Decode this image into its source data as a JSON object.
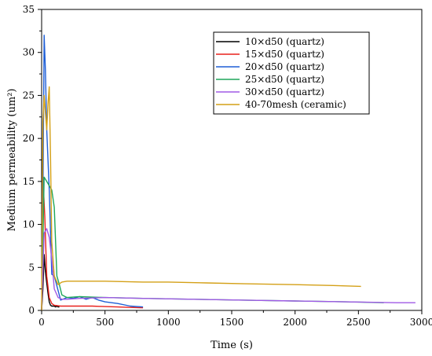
{
  "chart_data": {
    "type": "line",
    "xlabel": "Time (s)",
    "ylabel": "Medium permeability (um²)",
    "xlim": [
      0,
      3000
    ],
    "ylim": [
      0,
      35
    ],
    "xticks": [
      "0",
      "500",
      "1000",
      "1500",
      "2000",
      "2500",
      "3000"
    ],
    "yticks": [
      "0",
      "5",
      "10",
      "15",
      "20",
      "25",
      "30",
      "35"
    ],
    "grid": false,
    "legend_position": "top-right",
    "series": [
      {
        "name": "10×d50 (quartz)",
        "color": "#000000",
        "x": [
          0,
          10,
          20,
          30,
          40,
          50,
          60,
          70,
          80,
          90,
          100,
          110,
          120,
          130,
          140
        ],
        "y": [
          0,
          2.5,
          6.5,
          4.5,
          3.2,
          2.0,
          1.0,
          0.6,
          0.5,
          0.5,
          0.5,
          0.4,
          0.5,
          0.4,
          0.4
        ]
      },
      {
        "name": "15×d50 (quartz)",
        "color": "#e8201c",
        "x": [
          0,
          15,
          25,
          40,
          60,
          80,
          100,
          150,
          200,
          300,
          400,
          500,
          600,
          700,
          800
        ],
        "y": [
          0,
          14.0,
          11.0,
          4.0,
          1.5,
          0.8,
          0.6,
          0.5,
          0.5,
          0.5,
          0.5,
          0.45,
          0.4,
          0.35,
          0.3
        ]
      },
      {
        "name": "20×d50 (quartz)",
        "color": "#1f5fd6",
        "x": [
          0,
          10,
          20,
          30,
          40,
          60,
          80,
          100,
          150,
          200,
          250,
          300,
          350,
          400,
          450,
          500,
          600,
          700,
          800
        ],
        "y": [
          0,
          12,
          32,
          28,
          21,
          14,
          4.2,
          4.0,
          1.2,
          1.5,
          1.4,
          1.6,
          1.3,
          1.5,
          1.2,
          1.0,
          0.8,
          0.5,
          0.4
        ]
      },
      {
        "name": "25×d50 (quartz)",
        "color": "#1fa65a",
        "x": [
          0,
          20,
          40,
          60,
          80,
          100,
          120,
          140,
          160,
          200,
          300,
          500,
          800,
          1200,
          1600,
          2000,
          2400,
          2700
        ],
        "y": [
          0,
          15.5,
          15.0,
          14.5,
          14.0,
          12.0,
          4.0,
          3.0,
          1.8,
          1.5,
          1.6,
          1.5,
          1.4,
          1.3,
          1.2,
          1.1,
          1.0,
          0.9
        ]
      },
      {
        "name": "30×d50 (quartz)",
        "color": "#a05ae6",
        "x": [
          0,
          20,
          40,
          60,
          80,
          100,
          130,
          160,
          200,
          300,
          500,
          800,
          1200,
          1600,
          2000,
          2400,
          2800,
          2950
        ],
        "y": [
          0,
          9.0,
          9.5,
          8.5,
          6.0,
          2.5,
          1.5,
          1.3,
          1.3,
          1.4,
          1.5,
          1.4,
          1.3,
          1.2,
          1.1,
          1.0,
          0.9,
          0.9
        ]
      },
      {
        "name": "40-70mesh (ceramic)",
        "color": "#d4a017",
        "x": [
          0,
          10,
          20,
          30,
          40,
          50,
          60,
          70,
          80,
          100,
          130,
          160,
          200,
          300,
          500,
          800,
          1000,
          1300,
          1600,
          2000,
          2300,
          2520
        ],
        "y": [
          0,
          22.0,
          25.0,
          23.0,
          21.0,
          24.0,
          26.0,
          18.0,
          8.0,
          4.0,
          3.0,
          3.3,
          3.4,
          3.4,
          3.4,
          3.3,
          3.3,
          3.2,
          3.1,
          3.0,
          2.9,
          2.8
        ]
      }
    ]
  }
}
